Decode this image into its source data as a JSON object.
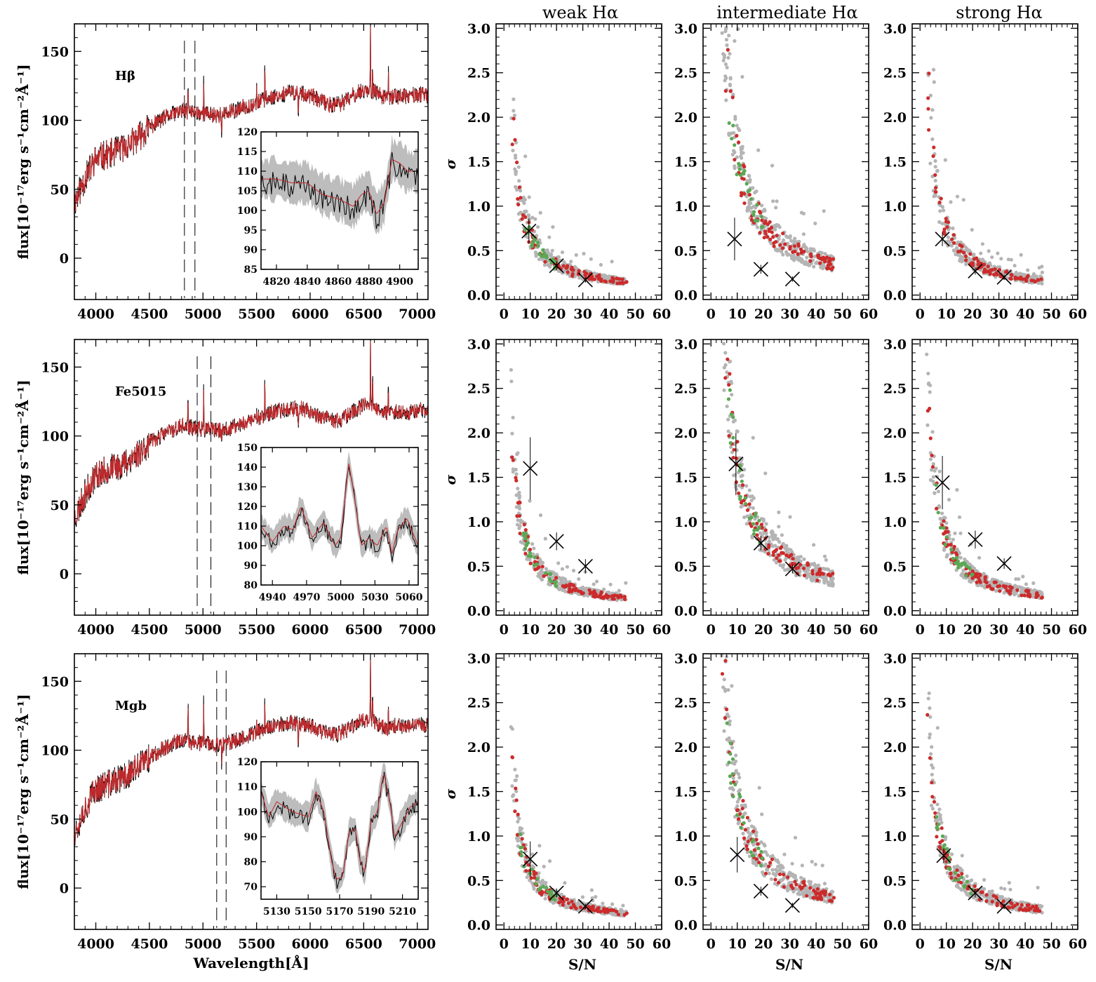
{
  "chart_data": [
    {
      "type": "line",
      "panel": "spectrum-row-1",
      "index_name": "Hβ",
      "xlim": [
        3800,
        7100
      ],
      "ylim": [
        -30,
        170
      ],
      "xticks": [
        4000,
        4500,
        5000,
        5500,
        6000,
        6500,
        7000
      ],
      "yticks": [
        0,
        50,
        100,
        150
      ],
      "ylabel": "flux[10⁻¹⁷erg s⁻¹cm⁻²Å⁻¹]",
      "xlabel": "",
      "band_markers": [
        4827,
        4925
      ],
      "series": [
        {
          "name": "observed",
          "color": "#000000"
        },
        {
          "name": "model",
          "color": "#c0282b"
        }
      ],
      "continuum_x": [
        3800,
        3900,
        4000,
        4100,
        4200,
        4300,
        4400,
        4500,
        4600,
        4700,
        4800,
        4900,
        5000,
        5100,
        5200,
        5300,
        5400,
        5500,
        5600,
        5700,
        5800,
        5900,
        6000,
        6100,
        6200,
        6300,
        6400,
        6500,
        6600,
        6700,
        6800,
        6900,
        7000,
        7100
      ],
      "continuum_y": [
        40,
        58,
        72,
        75,
        78,
        82,
        88,
        95,
        100,
        104,
        107,
        106,
        105,
        104,
        104,
        107,
        110,
        113,
        116,
        118,
        120,
        120,
        118,
        114,
        111,
        112,
        118,
        122,
        121,
        116,
        118,
        117,
        119,
        118
      ],
      "emission_lines": [
        {
          "x": 4861,
          "peak": 30
        },
        {
          "x": 5007,
          "peak": 40
        },
        {
          "x": 5500,
          "peak": 12
        },
        {
          "x": 5577,
          "peak": 30
        },
        {
          "x": 6300,
          "peak": 8
        },
        {
          "x": 6563,
          "peak": 55
        },
        {
          "x": 6583,
          "peak": 25
        },
        {
          "x": 6730,
          "peak": 25
        }
      ],
      "absorption_lines": [
        {
          "x": 5175,
          "depth": 15
        },
        {
          "x": 5890,
          "depth": 20
        }
      ],
      "inset": {
        "xlim": [
          4810,
          4912
        ],
        "ylim": [
          85,
          120
        ],
        "xticks": [
          4820,
          4840,
          4860,
          4880,
          4900
        ],
        "yticks": [
          85,
          90,
          95,
          100,
          105,
          110,
          115,
          120
        ],
        "model_x": [
          4810,
          4820,
          4830,
          4840,
          4850,
          4860,
          4865,
          4870,
          4875,
          4880,
          4885,
          4890,
          4895,
          4900,
          4905,
          4912
        ],
        "model_y": [
          108,
          108,
          107,
          107,
          104,
          103,
          102,
          101,
          104,
          105,
          99,
          102,
          113,
          112,
          110,
          110
        ],
        "band_halfwidth": 5
      }
    },
    {
      "type": "line",
      "panel": "spectrum-row-2",
      "index_name": "Fe5015",
      "xlim": [
        3800,
        7100
      ],
      "ylim": [
        -30,
        170
      ],
      "xticks": [
        4000,
        4500,
        5000,
        5500,
        6000,
        6500,
        7000
      ],
      "yticks": [
        0,
        50,
        100,
        150
      ],
      "ylabel": "flux[10⁻¹⁷erg s⁻¹cm⁻²Å⁻¹]",
      "xlabel": "",
      "band_markers": [
        4946,
        5074
      ],
      "series": [
        {
          "name": "observed",
          "color": "#000000"
        },
        {
          "name": "model",
          "color": "#c0282b"
        }
      ],
      "inset": {
        "xlim": [
          4930,
          5068
        ],
        "ylim": [
          80,
          150
        ],
        "xticks": [
          4940,
          4970,
          5000,
          5030,
          5060
        ],
        "yticks": [
          80,
          90,
          100,
          110,
          120,
          130,
          140,
          150
        ],
        "model_x": [
          4930,
          4940,
          4950,
          4958,
          4965,
          4975,
          4985,
          4995,
          5000,
          5007,
          5012,
          5018,
          5025,
          5032,
          5040,
          5045,
          5050,
          5058,
          5068
        ],
        "model_y": [
          110,
          102,
          110,
          108,
          120,
          104,
          112,
          100,
          104,
          142,
          125,
          100,
          104,
          100,
          110,
          96,
          108,
          114,
          100
        ],
        "band_halfwidth": 6
      }
    },
    {
      "type": "line",
      "panel": "spectrum-row-3",
      "index_name": "Mgb",
      "xlim": [
        3800,
        7100
      ],
      "ylim": [
        -30,
        170
      ],
      "xticks": [
        4000,
        4500,
        5000,
        5500,
        6000,
        6500,
        7000
      ],
      "yticks": [
        0,
        50,
        100,
        150
      ],
      "ylabel": "flux[10⁻¹⁷erg s⁻¹cm⁻²Å⁻¹]",
      "xlabel": "Wavelength[Å]",
      "band_markers": [
        5128,
        5216
      ],
      "series": [
        {
          "name": "observed",
          "color": "#000000"
        },
        {
          "name": "model",
          "color": "#c0282b"
        }
      ],
      "inset": {
        "xlim": [
          5120,
          5220
        ],
        "ylim": [
          65,
          120
        ],
        "xticks": [
          5130,
          5150,
          5170,
          5190,
          5210
        ],
        "yticks": [
          70,
          80,
          90,
          100,
          110,
          120
        ],
        "model_x": [
          5120,
          5125,
          5130,
          5140,
          5150,
          5155,
          5160,
          5165,
          5168,
          5172,
          5176,
          5180,
          5183,
          5186,
          5190,
          5194,
          5198,
          5202,
          5205,
          5210,
          5215,
          5220
        ],
        "model_y": [
          108,
          98,
          104,
          100,
          98,
          108,
          100,
          80,
          73,
          74,
          92,
          93,
          80,
          76,
          96,
          100,
          116,
          104,
          90,
          96,
          102,
          104
        ],
        "band_halfwidth": 5
      }
    },
    {
      "type": "scatter",
      "panel": "sigma-vs-sn",
      "column_titles": [
        "weak Hα",
        "intermediate Hα",
        "strong Hα"
      ],
      "xlabel": "S/N",
      "ylabel": "σ",
      "xlim": [
        -3,
        60
      ],
      "ylim": [
        -0.05,
        3.05
      ],
      "xticks": [
        0,
        10,
        20,
        30,
        40,
        50,
        60
      ],
      "yticks": [
        0.0,
        0.5,
        1.0,
        1.5,
        2.0,
        2.5,
        3.0
      ],
      "point_colors": {
        "all": "#b4b4b4",
        "class_a": "#cc2b2b",
        "class_b": "#5aa853"
      },
      "curve_amplitude": [
        [
          6.8,
          16.0,
          7.5
        ],
        [
          6.5,
          16.5,
          8.0
        ],
        [
          6.0,
          14.5,
          7.8
        ]
      ],
      "summary_points": [
        [
          [
            {
              "x": 9.5,
              "y": 0.72,
              "err": 0.14
            },
            {
              "x": 20,
              "y": 0.33,
              "err": 0.05
            },
            {
              "x": 31,
              "y": 0.17,
              "err": 0.03
            }
          ],
          [
            {
              "x": 9,
              "y": 0.63,
              "err": 0.24
            },
            {
              "x": 19,
              "y": 0.29,
              "err": 0.05
            },
            {
              "x": 31,
              "y": 0.18,
              "err": 0.03
            }
          ],
          [
            {
              "x": 8.5,
              "y": 0.63,
              "err": 0.08
            },
            {
              "x": 21,
              "y": 0.27,
              "err": 0.04
            },
            {
              "x": 32,
              "y": 0.2,
              "err": 0.03
            }
          ]
        ],
        [
          [
            {
              "x": 10,
              "y": 1.6,
              "err": 0.35
            },
            {
              "x": 20,
              "y": 0.78,
              "err": 0.1
            },
            {
              "x": 31,
              "y": 0.5,
              "err": 0.08
            }
          ],
          [
            {
              "x": 9.5,
              "y": 1.65,
              "err": 0.35
            },
            {
              "x": 19,
              "y": 0.76,
              "err": 0.08
            },
            {
              "x": 31,
              "y": 0.47,
              "err": 0.05
            }
          ],
          [
            {
              "x": 8.5,
              "y": 1.44,
              "err": 0.3
            },
            {
              "x": 21,
              "y": 0.8,
              "err": 0.1
            },
            {
              "x": 32,
              "y": 0.53,
              "err": 0.06
            }
          ]
        ],
        [
          [
            {
              "x": 10,
              "y": 0.74,
              "err": 0.2
            },
            {
              "x": 20,
              "y": 0.36,
              "err": 0.05
            },
            {
              "x": 31,
              "y": 0.21,
              "err": 0.03
            }
          ],
          [
            {
              "x": 10,
              "y": 0.79,
              "err": 0.2
            },
            {
              "x": 19,
              "y": 0.38,
              "err": 0.05
            },
            {
              "x": 31,
              "y": 0.22,
              "err": 0.03
            }
          ],
          [
            {
              "x": 9,
              "y": 0.78,
              "err": 0.08
            },
            {
              "x": 21,
              "y": 0.36,
              "err": 0.05
            },
            {
              "x": 32,
              "y": 0.21,
              "err": 0.03
            }
          ]
        ]
      ]
    }
  ]
}
